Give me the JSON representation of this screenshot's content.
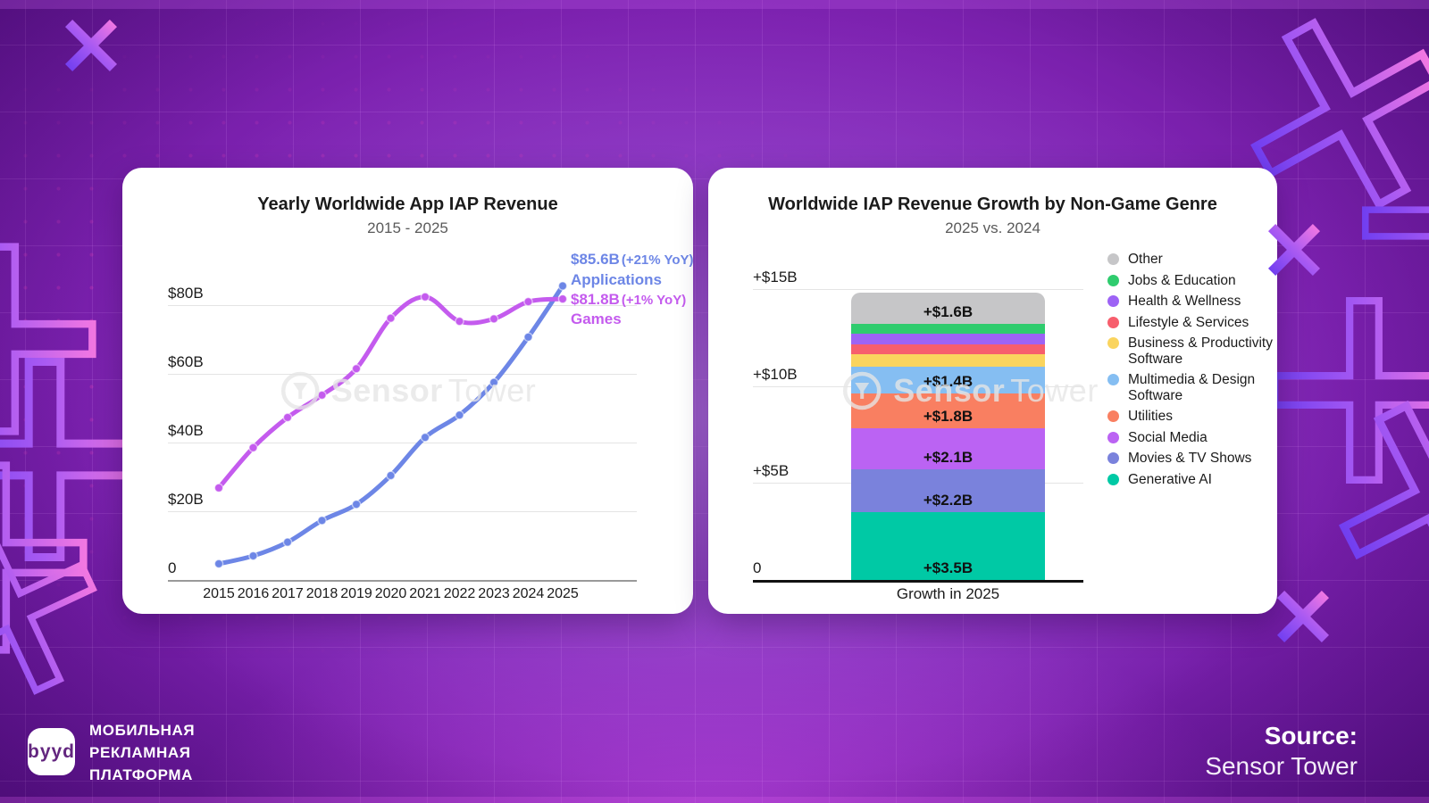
{
  "brand": {
    "logo_text": "byyd",
    "tagline_lines": [
      "МОБИЛЬНАЯ",
      "РЕКЛАМНАЯ",
      "ПЛАТФОРМА"
    ]
  },
  "source": {
    "label": "Source:",
    "value": "Sensor Tower"
  },
  "watermark": {
    "bold": "Sensor",
    "light": "Tower"
  },
  "colors": {
    "applications_blue": "#6d86e6",
    "games_magenta": "#c45bee",
    "background_purple": "#7d22b0",
    "decor_gradient": [
      "#6a3bf0",
      "#a95af2",
      "#fb7be0"
    ]
  },
  "chart_data": [
    {
      "id": "iap-revenue-line",
      "type": "line",
      "title": "Yearly Worldwide App IAP Revenue",
      "subtitle": "2015 - 2025",
      "x": [
        "2015",
        "2016",
        "2017",
        "2018",
        "2019",
        "2020",
        "2021",
        "2022",
        "2023",
        "2024",
        "2025"
      ],
      "yticks": [
        {
          "label": "0",
          "value": 0
        },
        {
          "label": "$20B",
          "value": 20
        },
        {
          "label": "$40B",
          "value": 40
        },
        {
          "label": "$60B",
          "value": 60
        },
        {
          "label": "$80B",
          "value": 80
        }
      ],
      "ylim": [
        0,
        90
      ],
      "grid": true,
      "series": [
        {
          "name": "Applications",
          "color": "#6d86e6",
          "values": [
            4.7,
            7.0,
            11.0,
            17.3,
            22.0,
            30.4,
            41.5,
            48.0,
            57.5,
            70.7,
            85.6
          ],
          "annotation_value": "$85.6B",
          "annotation_yoy": "(+21% YoY)"
        },
        {
          "name": "Games",
          "color": "#c45bee",
          "values": [
            26.8,
            38.5,
            47.3,
            53.8,
            61.5,
            76.2,
            82.4,
            75.3,
            76.0,
            81.0,
            81.8
          ],
          "annotation_value": "$81.8B",
          "annotation_yoy": "(+1% YoY)"
        }
      ]
    },
    {
      "id": "non-game-growth-bar",
      "type": "stacked_bar",
      "title": "Worldwide IAP Revenue Growth by Non-Game Genre",
      "subtitle": "2025 vs. 2024",
      "xlabel": "Growth in 2025",
      "yticks": [
        {
          "label": "0",
          "value": 0
        },
        {
          "label": "+$5B",
          "value": 5
        },
        {
          "label": "+$10B",
          "value": 10
        },
        {
          "label": "+$15B",
          "value": 15
        }
      ],
      "ylim": [
        0,
        16
      ],
      "segments_bottom_to_top": [
        {
          "name": "Generative AI",
          "value": 3.5,
          "label": "+$3.5B",
          "color": "#00c9a5"
        },
        {
          "name": "Movies & TV Shows",
          "value": 2.2,
          "label": "+$2.2B",
          "color": "#7a82dc"
        },
        {
          "name": "Social Media",
          "value": 2.1,
          "label": "+$2.1B",
          "color": "#bb63f3"
        },
        {
          "name": "Utilities",
          "value": 1.8,
          "label": "+$1.8B",
          "color": "#f97f61"
        },
        {
          "name": "Multimedia & Design Software",
          "value": 1.4,
          "label": "+$1.4B",
          "color": "#85bef2"
        },
        {
          "name": "Business & Productivity Software",
          "value": 0.65,
          "label": "",
          "color": "#fad45e"
        },
        {
          "name": "Lifestyle & Services",
          "value": 0.5,
          "label": "",
          "color": "#f75e6d"
        },
        {
          "name": "Health & Wellness",
          "value": 0.55,
          "label": "",
          "color": "#9d63f5"
        },
        {
          "name": "Jobs & Education",
          "value": 0.5,
          "label": "",
          "color": "#2fcc6e"
        },
        {
          "name": "Other",
          "value": 1.6,
          "label": "+$1.6B",
          "color": "#c6c6c8"
        }
      ],
      "legend_top_to_bottom": [
        {
          "label": "Other",
          "color": "#c6c6c8"
        },
        {
          "label": "Jobs & Education",
          "color": "#2fcc6e"
        },
        {
          "label": "Health & Wellness",
          "color": "#9d63f5"
        },
        {
          "label": "Lifestyle & Services",
          "color": "#f75e6d"
        },
        {
          "label": "Business & Productivity Software",
          "color": "#fad45e"
        },
        {
          "label": "Multimedia & Design Software",
          "color": "#85bef2"
        },
        {
          "label": "Utilities",
          "color": "#f97f61"
        },
        {
          "label": "Social Media",
          "color": "#bb63f3"
        },
        {
          "label": "Movies & TV Shows",
          "color": "#7a82dc"
        },
        {
          "label": "Generative AI",
          "color": "#00c9a5"
        }
      ]
    }
  ]
}
